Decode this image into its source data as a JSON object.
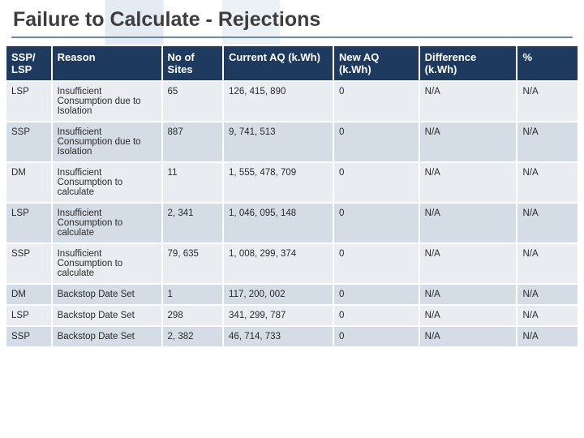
{
  "title": "Failure to Calculate - Rejections",
  "colors": {
    "header_bg": "#1f3a5f",
    "header_fg": "#ffffff",
    "row_odd_bg": "#e9edf2",
    "row_even_bg": "#d4dce6",
    "title_underline": "#6b8aa8",
    "title_color": "#3d3d3d",
    "cell_border": "#ffffff"
  },
  "table": {
    "columns": [
      {
        "label": "SSP/ LSP",
        "width_pct": 7.5
      },
      {
        "label": "Reason",
        "width_pct": 18
      },
      {
        "label": "No of Sites",
        "width_pct": 10
      },
      {
        "label": "Current AQ (k.Wh)",
        "width_pct": 18
      },
      {
        "label": "New AQ (k.Wh)",
        "width_pct": 14
      },
      {
        "label": "Difference (k.Wh)",
        "width_pct": 16
      },
      {
        "label": "%",
        "width_pct": 10
      }
    ],
    "rows": [
      {
        "c0": "LSP",
        "c1": "Insufficient Consumption due to Isolation",
        "c2": "65",
        "c3": "126, 415, 890",
        "c4": "0",
        "c5": "N/A",
        "c6": "N/A"
      },
      {
        "c0": "SSP",
        "c1": "Insufficient Consumption due to Isolation",
        "c2": "887",
        "c3": "9, 741, 513",
        "c4": "0",
        "c5": "N/A",
        "c6": "N/A"
      },
      {
        "c0": "DM",
        "c1": "Insufficient Consumption to calculate",
        "c2": "11",
        "c3": "1, 555, 478, 709",
        "c4": "0",
        "c5": "N/A",
        "c6": "N/A"
      },
      {
        "c0": "LSP",
        "c1": "Insufficient Consumption to calculate",
        "c2": "2, 341",
        "c3": "1, 046, 095, 148",
        "c4": "0",
        "c5": "N/A",
        "c6": "N/A"
      },
      {
        "c0": "SSP",
        "c1": "Insufficient Consumption to calculate",
        "c2": "79, 635",
        "c3": "1, 008, 299, 374",
        "c4": "0",
        "c5": "N/A",
        "c6": "N/A"
      },
      {
        "c0": "DM",
        "c1": "Backstop Date Set",
        "c2": "1",
        "c3": "117, 200, 002",
        "c4": "0",
        "c5": "N/A",
        "c6": "N/A"
      },
      {
        "c0": "LSP",
        "c1": "Backstop Date Set",
        "c2": "298",
        "c3": "341, 299, 787",
        "c4": "0",
        "c5": "N/A",
        "c6": "N/A"
      },
      {
        "c0": "SSP",
        "c1": "Backstop Date Set",
        "c2": "2, 382",
        "c3": "46, 714, 733",
        "c4": "0",
        "c5": "N/A",
        "c6": "N/A"
      }
    ]
  }
}
